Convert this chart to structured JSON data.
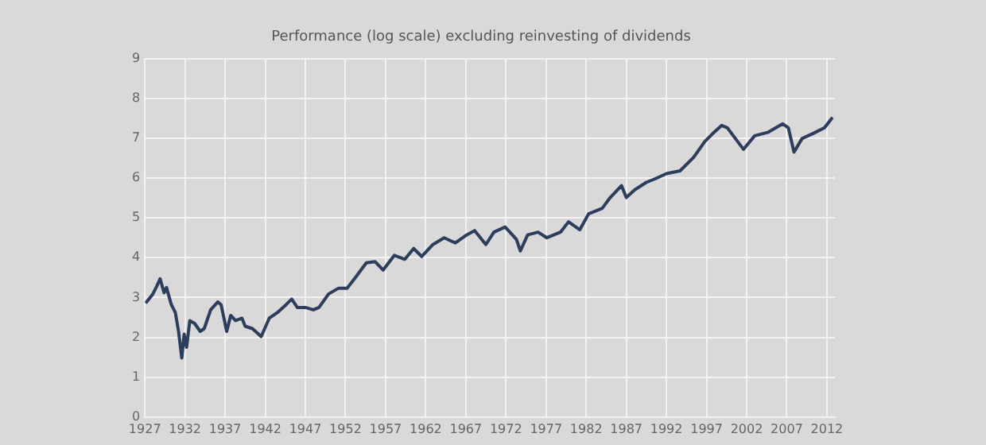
{
  "chart_data": {
    "type": "line",
    "subtitle": "Performance (log scale) excluding reinvesting of dividends",
    "x": [
      1927.1,
      1928.0,
      1928.5,
      1928.9,
      1929.4,
      1929.7,
      1930.3,
      1930.8,
      1931.2,
      1931.6,
      1931.9,
      1932.2,
      1932.6,
      1933.2,
      1933.9,
      1934.4,
      1935.2,
      1936.1,
      1936.5,
      1937.2,
      1937.7,
      1938.3,
      1939.1,
      1939.5,
      1940.4,
      1941.5,
      1942.5,
      1943.5,
      1944.6,
      1945.3,
      1946.0,
      1947.0,
      1948.0,
      1948.7,
      1949.9,
      1951.1,
      1952.2,
      1953.2,
      1954.6,
      1955.7,
      1956.7,
      1958.1,
      1959.4,
      1960.5,
      1961.5,
      1962.9,
      1964.3,
      1965.7,
      1967.1,
      1968.1,
      1969.5,
      1970.5,
      1971.9,
      1973.3,
      1973.8,
      1974.7,
      1976.0,
      1977.1,
      1978.8,
      1979.8,
      1981.2,
      1982.3,
      1984.0,
      1985.0,
      1986.4,
      1987.0,
      1988.1,
      1989.5,
      1990.6,
      1992.0,
      1993.7,
      1995.4,
      1996.8,
      1997.8,
      1998.9,
      1999.6,
      2000.6,
      2001.6,
      2003.0,
      2004.7,
      2006.5,
      2007.2,
      2007.9,
      2008.9,
      2010.3,
      2011.7,
      2012.7
    ],
    "series": [
      {
        "color": "#2c3e5c",
        "values": [
          2.86,
          3.09,
          3.29,
          3.47,
          3.12,
          3.25,
          2.82,
          2.62,
          2.15,
          1.48,
          2.08,
          1.75,
          2.42,
          2.35,
          2.15,
          2.22,
          2.69,
          2.89,
          2.82,
          2.15,
          2.55,
          2.42,
          2.48,
          2.28,
          2.22,
          2.02,
          2.48,
          2.62,
          2.82,
          2.96,
          2.75,
          2.75,
          2.69,
          2.75,
          3.09,
          3.23,
          3.23,
          3.49,
          3.87,
          3.9,
          3.69,
          4.06,
          3.96,
          4.23,
          4.03,
          4.33,
          4.5,
          4.37,
          4.57,
          4.68,
          4.33,
          4.64,
          4.77,
          4.46,
          4.17,
          4.57,
          4.64,
          4.5,
          4.64,
          4.9,
          4.7,
          5.1,
          5.24,
          5.51,
          5.81,
          5.51,
          5.71,
          5.89,
          5.98,
          6.11,
          6.18,
          6.52,
          6.92,
          7.12,
          7.32,
          7.26,
          6.99,
          6.72,
          7.06,
          7.15,
          7.36,
          7.26,
          6.65,
          6.99,
          7.12,
          7.26,
          7.52
        ]
      }
    ],
    "xlim": [
      1927,
      2013
    ],
    "xticks": [
      1927,
      1932,
      1937,
      1942,
      1947,
      1952,
      1957,
      1962,
      1967,
      1972,
      1977,
      1982,
      1987,
      1992,
      1997,
      2002,
      2007,
      2012
    ],
    "ylim": [
      0,
      9
    ],
    "yticks": [
      0,
      1,
      2,
      3,
      4,
      5,
      6,
      7,
      8,
      9
    ],
    "grid": true,
    "marker": "none",
    "line_style": "solid"
  }
}
